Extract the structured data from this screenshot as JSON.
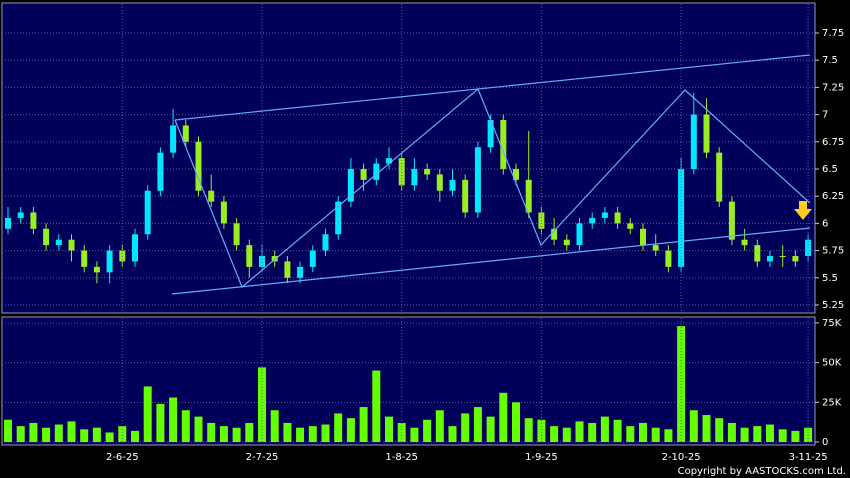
{
  "chart_data": [
    {
      "type": "candlestick",
      "open": [
        5.95,
        6.05,
        6.1,
        5.95,
        5.8,
        5.85,
        5.75,
        5.6,
        5.55,
        5.75,
        5.65,
        5.9,
        6.3,
        6.65,
        6.9,
        6.75,
        6.3,
        6.2,
        6.0,
        5.8,
        5.6,
        5.7,
        5.65,
        5.5,
        5.6,
        5.75,
        5.9,
        6.2,
        6.5,
        6.4,
        6.55,
        6.6,
        6.35,
        6.5,
        6.45,
        6.3,
        6.4,
        6.1,
        6.7,
        6.95,
        6.5,
        6.4,
        6.1,
        5.95,
        5.85,
        5.8,
        6.0,
        6.05,
        6.1,
        6.0,
        5.95,
        5.8,
        5.75,
        5.6,
        6.5,
        7.0,
        6.65,
        6.2,
        5.85,
        5.8,
        5.65,
        5.7,
        5.7,
        5.7
      ],
      "high": [
        6.15,
        6.15,
        6.15,
        6.0,
        5.9,
        5.9,
        5.8,
        5.65,
        5.8,
        5.8,
        5.95,
        6.35,
        6.7,
        7.05,
        6.95,
        6.8,
        6.45,
        6.25,
        6.05,
        5.85,
        5.8,
        5.75,
        5.7,
        5.65,
        5.8,
        5.95,
        6.25,
        6.6,
        6.55,
        6.6,
        6.7,
        6.65,
        6.6,
        6.55,
        6.5,
        6.5,
        6.45,
        6.75,
        7.0,
        7.0,
        6.55,
        6.85,
        6.15,
        6.05,
        5.9,
        6.05,
        6.1,
        6.15,
        6.15,
        6.05,
        6.0,
        5.9,
        5.8,
        6.6,
        7.2,
        7.15,
        6.7,
        6.25,
        5.95,
        5.85,
        5.75,
        5.8,
        5.75,
        5.9
      ],
      "low": [
        5.9,
        6.0,
        5.9,
        5.75,
        5.75,
        5.65,
        5.55,
        5.45,
        5.45,
        5.6,
        5.6,
        5.85,
        6.25,
        6.6,
        6.7,
        6.25,
        6.15,
        5.95,
        5.75,
        5.5,
        5.55,
        5.6,
        5.45,
        5.45,
        5.55,
        5.7,
        5.85,
        6.15,
        6.3,
        6.35,
        6.5,
        6.3,
        6.3,
        6.4,
        6.2,
        6.25,
        6.05,
        6.05,
        6.65,
        6.45,
        6.35,
        6.05,
        5.9,
        5.8,
        5.75,
        5.75,
        5.95,
        6.0,
        5.95,
        5.9,
        5.75,
        5.7,
        5.55,
        5.55,
        6.45,
        6.6,
        6.15,
        5.8,
        5.75,
        5.6,
        5.6,
        5.6,
        5.6,
        5.65
      ],
      "close": [
        6.05,
        6.1,
        5.95,
        5.8,
        5.85,
        5.75,
        5.6,
        5.55,
        5.75,
        5.65,
        5.9,
        6.3,
        6.65,
        6.9,
        6.75,
        6.3,
        6.2,
        6.0,
        5.8,
        5.6,
        5.7,
        5.65,
        5.5,
        5.6,
        5.75,
        5.9,
        6.2,
        6.5,
        6.4,
        6.55,
        6.6,
        6.35,
        6.5,
        6.45,
        6.3,
        6.4,
        6.1,
        6.7,
        6.95,
        6.5,
        6.4,
        6.1,
        5.95,
        5.85,
        5.8,
        6.0,
        6.05,
        6.1,
        6.0,
        5.95,
        5.8,
        5.75,
        5.6,
        6.5,
        7.0,
        6.65,
        6.2,
        5.85,
        5.8,
        5.65,
        5.7,
        5.7,
        5.65,
        5.85
      ],
      "up_color": "#00e8ff",
      "down_color": "#99ee22",
      "ylim": [
        5.2,
        8.0
      ],
      "yticks": [
        5.25,
        5.5,
        5.75,
        6,
        6.25,
        6.5,
        6.75,
        7,
        7.25,
        7.5,
        7.75
      ],
      "grid": true
    },
    {
      "type": "bar",
      "categories": [
        null,
        null,
        null,
        null,
        null,
        null,
        null,
        null,
        null,
        "2-6-25",
        null,
        null,
        null,
        null,
        null,
        null,
        null,
        null,
        null,
        null,
        "2-7-25",
        null,
        null,
        null,
        null,
        null,
        null,
        null,
        null,
        null,
        null,
        "1-8-25",
        null,
        null,
        null,
        null,
        null,
        null,
        null,
        null,
        null,
        null,
        "1-9-25",
        null,
        null,
        null,
        null,
        null,
        null,
        null,
        null,
        null,
        null,
        "2-10-25",
        null,
        null,
        null,
        null,
        null,
        null,
        null,
        null,
        null,
        "3-11-25"
      ],
      "values": [
        14000,
        10000,
        12000,
        9000,
        11000,
        13000,
        8000,
        9000,
        6000,
        10000,
        7000,
        35000,
        24000,
        28000,
        20000,
        16000,
        12000,
        10000,
        9000,
        12000,
        47000,
        20000,
        12000,
        9000,
        10000,
        11000,
        18000,
        15000,
        22000,
        45000,
        16000,
        12000,
        9000,
        14000,
        20000,
        10000,
        18000,
        22000,
        16000,
        31000,
        25000,
        15000,
        14000,
        10000,
        9000,
        13000,
        12000,
        16000,
        14000,
        10000,
        12000,
        9000,
        8000,
        73000,
        20000,
        17000,
        15000,
        12000,
        9000,
        10000,
        11000,
        8000,
        7000,
        9000
      ],
      "color": "#66ff00",
      "ylim": [
        0,
        80000
      ],
      "yticks": [
        0,
        {
          "value": 25000,
          "label": "25K"
        },
        {
          "value": 50000,
          "label": "50K"
        },
        {
          "value": 75000,
          "label": "75K"
        }
      ],
      "grid": true,
      "annotations": [
        "Copyright by AASTOCKS.com Ltd."
      ]
    }
  ]
}
